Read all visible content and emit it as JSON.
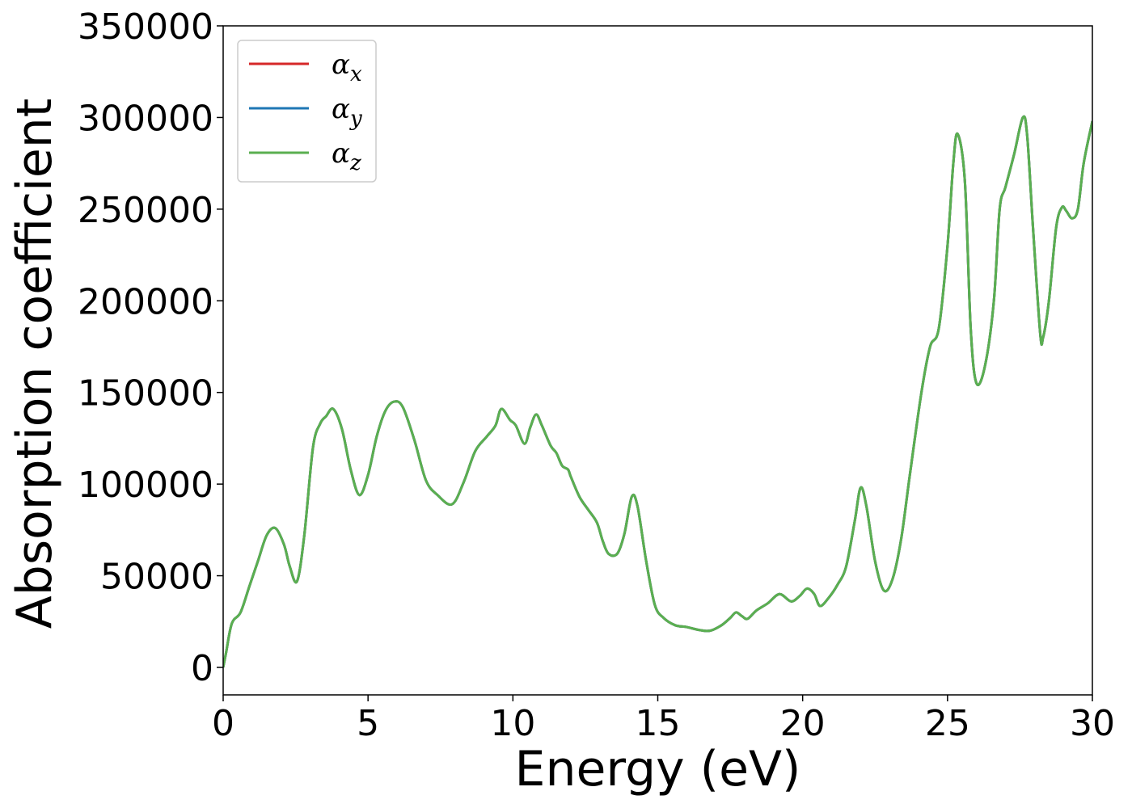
{
  "chart_data": {
    "type": "line",
    "xlabel": "Energy (eV)",
    "ylabel": "Absorption coefficient",
    "xlim": [
      0,
      30
    ],
    "ylim": [
      -15000,
      350000
    ],
    "x_ticks": [
      0,
      5,
      10,
      15,
      20,
      25,
      30
    ],
    "x_tick_labels": [
      "0",
      "5",
      "10",
      "15",
      "20",
      "25",
      "30"
    ],
    "y_ticks": [
      0,
      50000,
      100000,
      150000,
      200000,
      250000,
      300000,
      350000
    ],
    "y_tick_labels": [
      "0",
      "50000",
      "100000",
      "150000",
      "200000",
      "250000",
      "300000",
      "350000"
    ],
    "grid": false,
    "legend_position": "top-left",
    "x": [
      0,
      0.1,
      0.3,
      0.6,
      0.9,
      1.2,
      1.5,
      1.8,
      2.1,
      2.3,
      2.55,
      2.8,
      3.1,
      3.35,
      3.55,
      3.8,
      4.1,
      4.4,
      4.7,
      5.0,
      5.3,
      5.6,
      5.9,
      6.2,
      6.6,
      7.0,
      7.4,
      7.9,
      8.3,
      8.7,
      9.1,
      9.4,
      9.6,
      9.9,
      10.1,
      10.4,
      10.6,
      10.8,
      11.0,
      11.3,
      11.5,
      11.7,
      11.9,
      12.0,
      12.3,
      12.6,
      12.9,
      13.1,
      13.3,
      13.6,
      13.85,
      14.1,
      14.3,
      14.6,
      14.9,
      15.2,
      15.6,
      16.0,
      16.4,
      16.8,
      17.2,
      17.5,
      17.7,
      17.9,
      18.1,
      18.4,
      18.8,
      19.2,
      19.6,
      19.9,
      20.15,
      20.4,
      20.6,
      20.9,
      21.2,
      21.5,
      21.8,
      22.0,
      22.2,
      22.5,
      22.8,
      23.1,
      23.4,
      23.7,
      24.1,
      24.4,
      24.7,
      25.0,
      25.2,
      25.35,
      25.6,
      25.8,
      26.0,
      26.3,
      26.6,
      26.8,
      27.0,
      27.3,
      27.6,
      27.75,
      27.95,
      28.2,
      28.3,
      28.5,
      28.75,
      28.95,
      29.1,
      29.3,
      29.5,
      29.7,
      30.0
    ],
    "series": [
      {
        "name": "α_x",
        "color": "#d62728",
        "values": [
          0,
          8000,
          24000,
          30000,
          44000,
          58000,
          72000,
          76000,
          67000,
          55000,
          47000,
          72000,
          120000,
          133000,
          137000,
          141000,
          130000,
          108000,
          94000,
          105000,
          126000,
          140000,
          145000,
          142000,
          124000,
          102000,
          94000,
          89000,
          101000,
          118000,
          126000,
          132000,
          141000,
          135000,
          132000,
          122000,
          131000,
          138000,
          132000,
          121000,
          117000,
          110000,
          108000,
          104000,
          93000,
          86000,
          79000,
          69000,
          62000,
          62000,
          73000,
          93000,
          88000,
          58000,
          34000,
          27000,
          23000,
          22000,
          20500,
          20000,
          23000,
          27000,
          30000,
          28000,
          26500,
          31000,
          35000,
          40000,
          36000,
          39000,
          43000,
          40000,
          33500,
          38000,
          45000,
          55000,
          80000,
          98000,
          88000,
          58000,
          42000,
          48000,
          70000,
          105000,
          150000,
          175000,
          185000,
          230000,
          275000,
          291000,
          265000,
          185000,
          155000,
          165000,
          200000,
          250000,
          262000,
          280000,
          300000,
          290000,
          240000,
          182000,
          180000,
          200000,
          240000,
          251000,
          249000,
          245000,
          250000,
          275000,
          298000
        ]
      },
      {
        "name": "α_y",
        "color": "#1f77b4",
        "values": [
          0,
          8000,
          24000,
          30000,
          44000,
          58000,
          72000,
          76000,
          67000,
          55000,
          47000,
          72000,
          120000,
          133000,
          137000,
          141000,
          130000,
          108000,
          94000,
          105000,
          126000,
          140000,
          145000,
          142000,
          124000,
          102000,
          94000,
          89000,
          101000,
          118000,
          126000,
          132000,
          141000,
          135000,
          132000,
          122000,
          131000,
          138000,
          132000,
          121000,
          117000,
          110000,
          108000,
          104000,
          93000,
          86000,
          79000,
          69000,
          62000,
          62000,
          73000,
          93000,
          88000,
          58000,
          34000,
          27000,
          23000,
          22000,
          20500,
          20000,
          23000,
          27000,
          30000,
          28000,
          26500,
          31000,
          35000,
          40000,
          36000,
          39000,
          43000,
          40000,
          33500,
          38000,
          45000,
          55000,
          80000,
          98000,
          88000,
          58000,
          42000,
          48000,
          70000,
          105000,
          150000,
          175000,
          185000,
          230000,
          275000,
          291000,
          265000,
          185000,
          155000,
          165000,
          200000,
          250000,
          262000,
          280000,
          300000,
          290000,
          240000,
          182000,
          180000,
          200000,
          240000,
          251000,
          249000,
          245000,
          250000,
          275000,
          298000
        ]
      },
      {
        "name": "α_z",
        "color": "#5aaf50",
        "values": [
          0,
          8000,
          24000,
          30000,
          44000,
          58000,
          72000,
          76000,
          67000,
          55000,
          47000,
          72000,
          120000,
          133000,
          137000,
          141000,
          130000,
          108000,
          94000,
          105000,
          126000,
          140000,
          145000,
          142000,
          124000,
          102000,
          94000,
          89000,
          101000,
          118000,
          126000,
          132000,
          141000,
          135000,
          132000,
          122000,
          131000,
          138000,
          132000,
          121000,
          117000,
          110000,
          108000,
          104000,
          93000,
          86000,
          79000,
          69000,
          62000,
          62000,
          73000,
          93000,
          88000,
          58000,
          34000,
          27000,
          23000,
          22000,
          20500,
          20000,
          23000,
          27000,
          30000,
          28000,
          26500,
          31000,
          35000,
          40000,
          36000,
          39000,
          43000,
          40000,
          33500,
          38000,
          45000,
          55000,
          80000,
          98000,
          88000,
          58000,
          42000,
          48000,
          70000,
          105000,
          150000,
          175000,
          185000,
          230000,
          275000,
          291000,
          265000,
          185000,
          155000,
          165000,
          200000,
          250000,
          262000,
          280000,
          300000,
          290000,
          240000,
          182000,
          180000,
          200000,
          240000,
          251000,
          249000,
          245000,
          250000,
          275000,
          298000
        ]
      }
    ],
    "legend": [
      {
        "base": "α",
        "sub": "x"
      },
      {
        "base": "α",
        "sub": "y"
      },
      {
        "base": "α",
        "sub": "z"
      }
    ]
  }
}
